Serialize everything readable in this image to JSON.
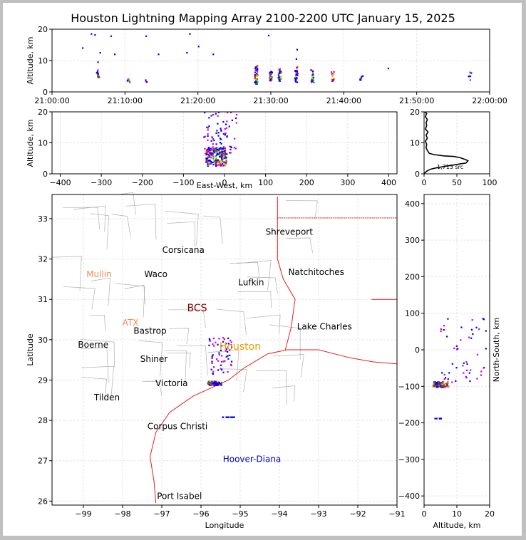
{
  "chart_data": {
    "type": "scatter",
    "title": "Houston Lightning Mapping Array 2100-2200 UTC January 15, 2025",
    "panels": {
      "time_altitude": {
        "xlabel": "",
        "ylabel": "Altitude, km",
        "xticks": [
          "21:00:00",
          "21:10:00",
          "21:20:00",
          "21:30:00",
          "21:40:00",
          "21:50:00",
          "22:00:00"
        ],
        "xlim_minutes": [
          0,
          60
        ],
        "ylim": [
          0,
          20
        ],
        "yticks": [
          0,
          10,
          20
        ],
        "clusters": [
          {
            "t": 6.3,
            "zmin": 4.5,
            "zmax": 7,
            "n": 14
          },
          {
            "t": 10.5,
            "zmin": 3,
            "zmax": 4.2,
            "n": 6
          },
          {
            "t": 12.9,
            "zmin": 3,
            "zmax": 3.8,
            "n": 4
          },
          {
            "t": 28.0,
            "zmin": 2.5,
            "zmax": 8.5,
            "n": 40
          },
          {
            "t": 30.0,
            "zmin": 3.5,
            "zmax": 6.5,
            "n": 24
          },
          {
            "t": 31.2,
            "zmin": 3.5,
            "zmax": 7.5,
            "n": 24
          },
          {
            "t": 33.5,
            "zmin": 3,
            "zmax": 8,
            "n": 30
          },
          {
            "t": 35.7,
            "zmin": 3,
            "zmax": 7,
            "n": 20
          },
          {
            "t": 38.5,
            "zmin": 3,
            "zmax": 6.5,
            "n": 12
          },
          {
            "t": 42.4,
            "zmin": 3.5,
            "zmax": 5.5,
            "n": 8
          },
          {
            "t": 57.3,
            "zmin": 3.5,
            "zmax": 6.5,
            "n": 6
          }
        ],
        "scattered_high": [
          {
            "t": 4.2,
            "z": 14
          },
          {
            "t": 5.4,
            "z": 18.5
          },
          {
            "t": 5.9,
            "z": 18.2
          },
          {
            "t": 6.3,
            "z": 9.5
          },
          {
            "t": 6.6,
            "z": 12.5
          },
          {
            "t": 8.1,
            "z": 17.8
          },
          {
            "t": 8.6,
            "z": 12
          },
          {
            "t": 12.9,
            "z": 17.8
          },
          {
            "t": 14.6,
            "z": 12
          },
          {
            "t": 18.5,
            "z": 12.5
          },
          {
            "t": 18.9,
            "z": 18.5
          },
          {
            "t": 20.1,
            "z": 14.5
          },
          {
            "t": 22.1,
            "z": 12
          },
          {
            "t": 29.7,
            "z": 18
          },
          {
            "t": 33.5,
            "z": 10.5
          },
          {
            "t": 33.6,
            "z": 13.5
          },
          {
            "t": 46.1,
            "z": 7.5
          }
        ]
      },
      "ew_altitude": {
        "xlabel": "East-West, km",
        "ylabel": "Altitude, km",
        "xlim": [
          -420,
          420
        ],
        "xticks": [
          -400,
          -300,
          -200,
          -100,
          0,
          100,
          200,
          300,
          400
        ],
        "ylim": [
          0,
          20
        ],
        "yticks": [
          0,
          10,
          20
        ]
      },
      "histogram": {
        "xlim": [
          0,
          100
        ],
        "xticks": [
          0,
          50,
          100
        ],
        "ylim": [
          0,
          20
        ],
        "yticks": [
          0,
          10,
          20
        ],
        "annotation": "1,713 src",
        "profile": [
          [
            0,
            0
          ],
          [
            2,
            0.5
          ],
          [
            5,
            1
          ],
          [
            10,
            1.5
          ],
          [
            20,
            2
          ],
          [
            40,
            2.7
          ],
          [
            55,
            3.2
          ],
          [
            64,
            3.5
          ],
          [
            67,
            4.2
          ],
          [
            63,
            4.6
          ],
          [
            55,
            5.2
          ],
          [
            45,
            5.6
          ],
          [
            30,
            5.8
          ],
          [
            15,
            6.2
          ],
          [
            8,
            6.6
          ],
          [
            5,
            7.5
          ],
          [
            3,
            8.5
          ],
          [
            4,
            9.5
          ],
          [
            2,
            10.5
          ],
          [
            5,
            11.5
          ],
          [
            3,
            12.5
          ],
          [
            6,
            13.5
          ],
          [
            2,
            14.5
          ],
          [
            4,
            15.5
          ],
          [
            3,
            16.5
          ],
          [
            5,
            17.5
          ],
          [
            2,
            18.5
          ],
          [
            4,
            19.5
          ],
          [
            1,
            20
          ]
        ]
      },
      "plan_view": {
        "xlabel": "Longitude",
        "ylabel": "Latitude",
        "xlim": [
          -99.8,
          -91
        ],
        "ylim": [
          25.9,
          33.6
        ],
        "xticks": [
          -99,
          -98,
          -97,
          -96,
          -95,
          -94,
          -93,
          -92,
          -91
        ],
        "yticks": [
          26,
          27,
          28,
          29,
          30,
          31,
          32,
          33
        ],
        "cities": [
          {
            "name": "Shreveport",
            "lon": -93.75,
            "lat": 32.6,
            "color": "#000000"
          },
          {
            "name": "Corsicana",
            "lon": -96.45,
            "lat": 32.15,
            "color": "#000000"
          },
          {
            "name": "Natchitoches",
            "lon": -93.06,
            "lat": 31.6,
            "color": "#000000"
          },
          {
            "name": "Mullin",
            "lon": -98.6,
            "lat": 31.55,
            "color": "#f08c50"
          },
          {
            "name": "Waco",
            "lon": -97.15,
            "lat": 31.55,
            "color": "#000000"
          },
          {
            "name": "Lufkin",
            "lon": -94.72,
            "lat": 31.35,
            "color": "#000000"
          },
          {
            "name": "BCS",
            "lon": -96.1,
            "lat": 30.7,
            "color": "#800000"
          },
          {
            "name": "ATX",
            "lon": -97.8,
            "lat": 30.35,
            "color": "#f08c50"
          },
          {
            "name": "Bastrop",
            "lon": -97.3,
            "lat": 30.15,
            "color": "#000000"
          },
          {
            "name": "Lake Charles",
            "lon": -92.85,
            "lat": 30.25,
            "color": "#000000"
          },
          {
            "name": "Boerne",
            "lon": -98.75,
            "lat": 29.8,
            "color": "#000000"
          },
          {
            "name": "Houston",
            "lon": -95.0,
            "lat": 29.75,
            "color": "#e8a000"
          },
          {
            "name": "Shiner",
            "lon": -97.2,
            "lat": 29.45,
            "color": "#000000"
          },
          {
            "name": "Victoria",
            "lon": -96.75,
            "lat": 28.85,
            "color": "#000000"
          },
          {
            "name": "Tilden",
            "lon": -98.4,
            "lat": 28.5,
            "color": "#000000"
          },
          {
            "name": "Corpus Christi",
            "lon": -96.6,
            "lat": 27.78,
            "color": "#000000"
          },
          {
            "name": "Hoover-Diana",
            "lon": -94.7,
            "lat": 26.97,
            "color": "#0000cc"
          },
          {
            "name": "Port Isabel",
            "lon": -96.55,
            "lat": 26.05,
            "color": "#000000"
          }
        ]
      },
      "ns_altitude": {
        "xlabel": "Altitude, km",
        "ylabel": "North-South, km",
        "xlim": [
          0,
          20
        ],
        "xticks": [
          0,
          10,
          20
        ],
        "ylim": [
          -425,
          425
        ],
        "yticks": [
          -400,
          -300,
          -200,
          -100,
          0,
          100,
          200,
          300,
          400
        ]
      }
    },
    "colors": {
      "early": "#0000ff",
      "mid": "#00aa00",
      "late": "#ff0000",
      "magenta": "#cc00cc",
      "coast": "#e02020",
      "county": "#b0b0b0",
      "grid": "#e6e6e6"
    }
  }
}
